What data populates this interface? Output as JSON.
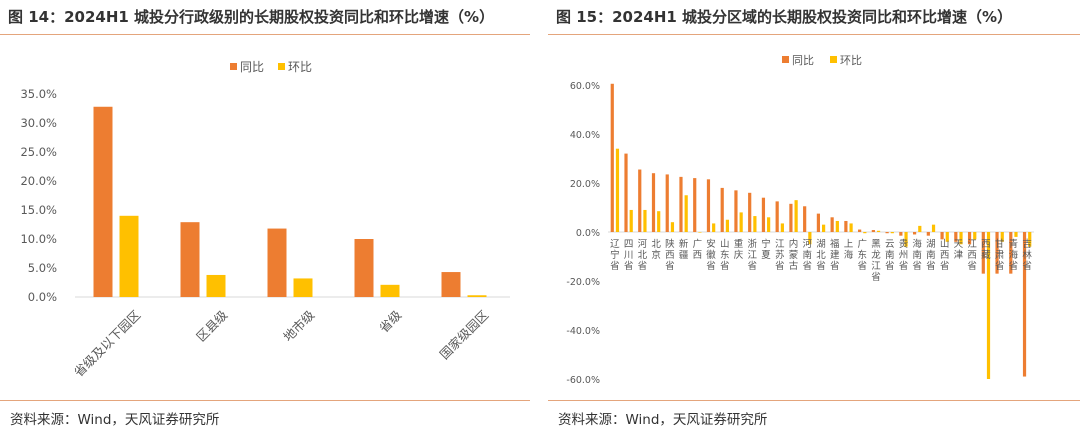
{
  "colors": {
    "yoy": "#ED7D31",
    "qoq": "#FFC000",
    "rule": "#E4A57C"
  },
  "panels": [
    {
      "title": "图 14：2024H1 城投分行政级别的长期股权投资同比和环比增速（%）",
      "source": "资料来源：Wind，天风证券研究所"
    },
    {
      "title": "图 15：2024H1 城投分区域的长期股权投资同比和环比增速（%）",
      "source": "资料来源：Wind，天风证券研究所"
    }
  ],
  "chart_data": [
    {
      "type": "bar",
      "categories": [
        "省级及以下园区",
        "区县级",
        "地市级",
        "省级",
        "国家级园区"
      ],
      "series": [
        {
          "name": "同比",
          "values": [
            32.8,
            12.9,
            11.8,
            10.0,
            4.3
          ]
        },
        {
          "name": "环比",
          "values": [
            14.0,
            3.8,
            3.2,
            2.1,
            0.3
          ]
        }
      ],
      "ylim": [
        0,
        35
      ],
      "yticks": [
        "0.0%",
        "5.0%",
        "10.0%",
        "15.0%",
        "20.0%",
        "25.0%",
        "30.0%",
        "35.0%"
      ],
      "legend": "top",
      "grid": false
    },
    {
      "type": "bar",
      "categories": [
        "辽宁省",
        "四川省",
        "河北省",
        "北京",
        "陕西省",
        "新疆",
        "广西",
        "安徽省",
        "山东省",
        "重庆",
        "浙江省",
        "宁夏",
        "江苏省",
        "内蒙古",
        "河南省",
        "湖北省",
        "福建省",
        "上海",
        "广东省",
        "黑龙江省",
        "云南省",
        "贵州省",
        "海南省",
        "湖南省",
        "山西省",
        "天津",
        "江西省",
        "西藏",
        "甘肃省",
        "青海省",
        "吉林省"
      ],
      "series": [
        {
          "name": "同比",
          "values": [
            60.5,
            32.0,
            25.5,
            24.0,
            23.5,
            22.5,
            22.0,
            21.5,
            18.0,
            17.0,
            16.0,
            14.0,
            12.5,
            11.5,
            10.5,
            7.5,
            6.0,
            4.5,
            1.0,
            0.8,
            -0.5,
            -1.5,
            -1.0,
            -1.5,
            -3.0,
            -4.0,
            -5.0,
            -17.0,
            -17.0,
            -17.0,
            -59.0
          ]
        },
        {
          "name": "环比",
          "values": [
            34.0,
            9.0,
            9.0,
            8.5,
            4.0,
            15.0,
            0.0,
            3.5,
            5.0,
            8.0,
            6.5,
            6.0,
            3.5,
            13.0,
            -5.0,
            3.0,
            4.5,
            3.5,
            -0.5,
            0.5,
            -0.5,
            -6.0,
            2.5,
            3.0,
            -4.0,
            -5.0,
            -3.0,
            -60.0,
            -4.0,
            -2.0,
            -6.0
          ]
        }
      ],
      "ylim": [
        -60,
        60
      ],
      "yticks": [
        "-60.0%",
        "-40.0%",
        "-20.0%",
        "0.0%",
        "20.0%",
        "40.0%",
        "60.0%"
      ],
      "legend": "top",
      "grid": false
    }
  ]
}
